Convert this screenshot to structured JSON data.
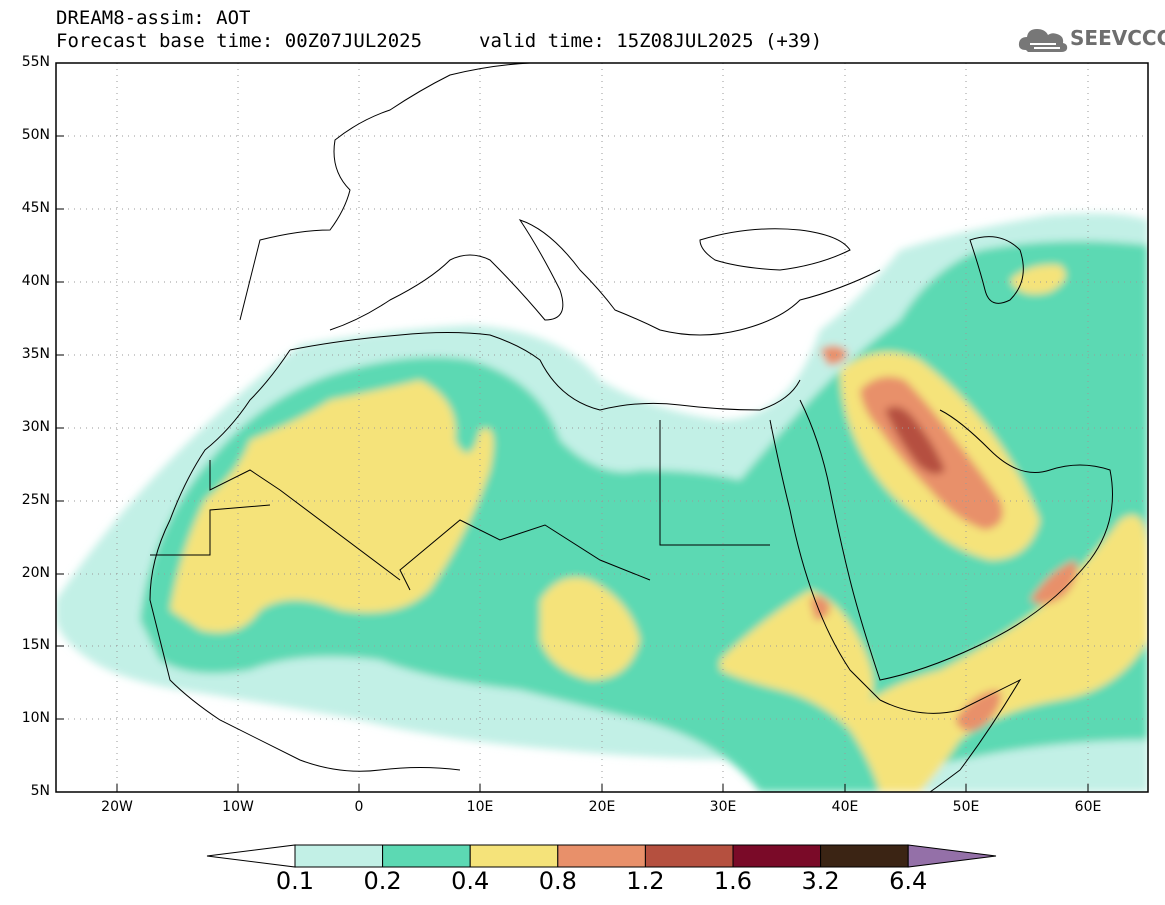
{
  "header": {
    "title": "DREAM8-assim: AOT",
    "base_time": "Forecast base time: 00Z07JUL2025",
    "valid_time": "valid time: 15Z08JUL2025 (+39)",
    "logo_text": "SEEVCCC"
  },
  "map": {
    "lat_labels": [
      "55N",
      "50N",
      "45N",
      "40N",
      "35N",
      "30N",
      "25N",
      "20N",
      "15N",
      "10N",
      "5N"
    ],
    "lon_labels": [
      "20W",
      "10W",
      "0",
      "10E",
      "20E",
      "30E",
      "40E",
      "50E",
      "60E"
    ]
  },
  "colorbar": {
    "labels": [
      "0.1",
      "0.2",
      "0.4",
      "0.8",
      "1.2",
      "1.6",
      "3.2",
      "6.4"
    ],
    "colors": [
      "#c2f0e6",
      "#5cd9b3",
      "#f5e37a",
      "#e8906a",
      "#b5503f",
      "#7a0a28",
      "#3b2414",
      "#9470a8"
    ]
  }
}
